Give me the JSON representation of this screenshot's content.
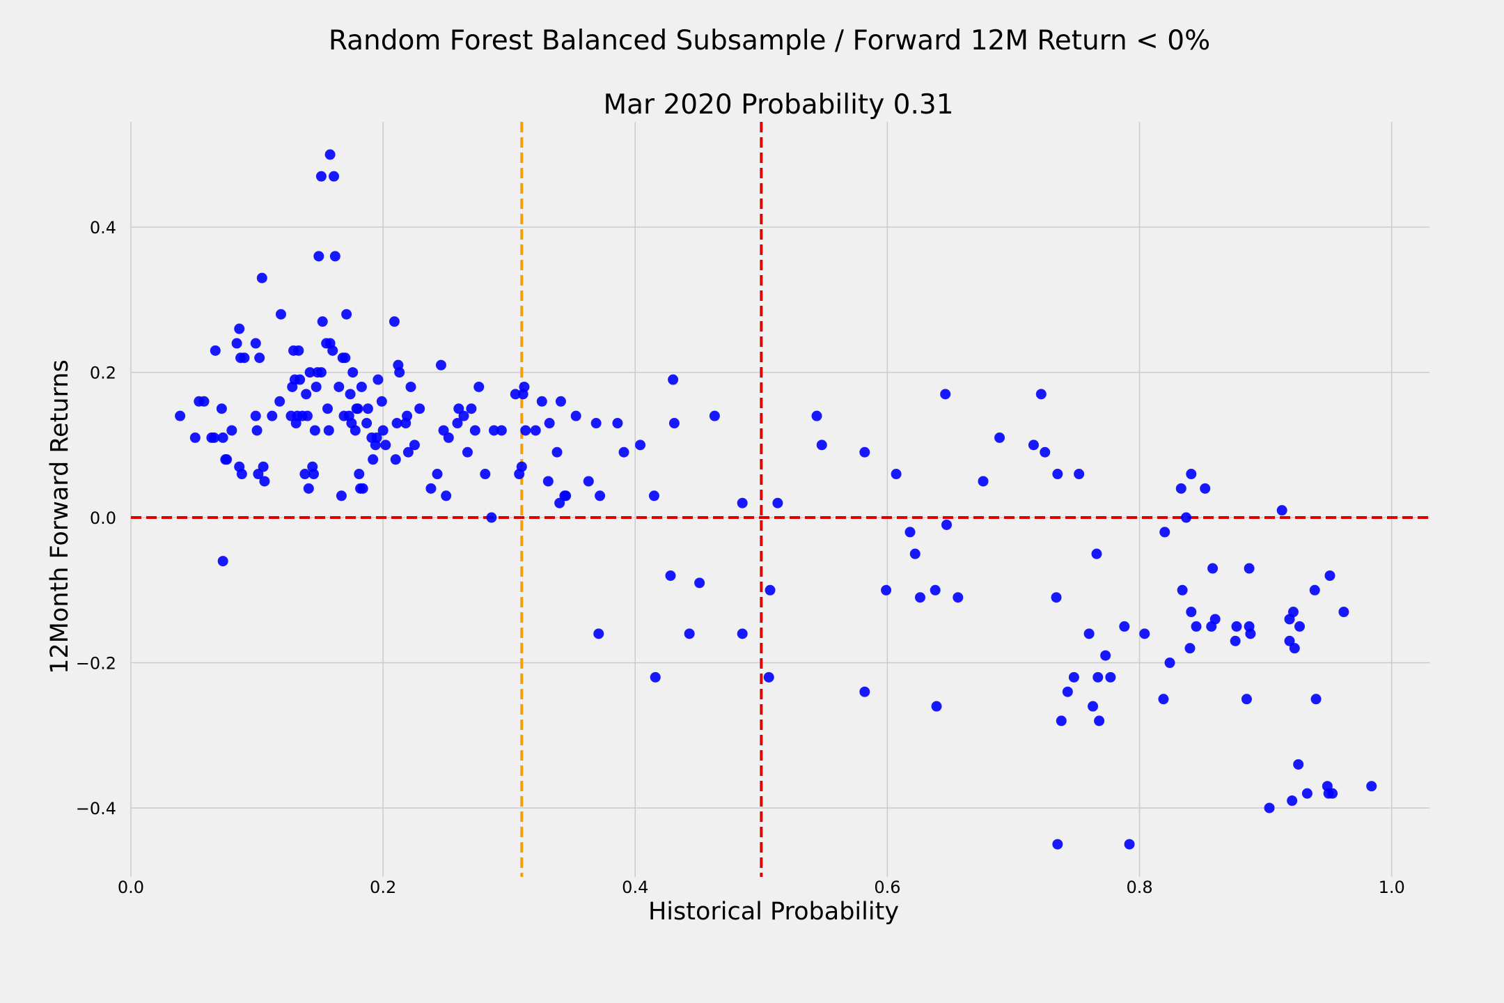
{
  "chart_data": {
    "type": "scatter",
    "title": "Random Forest Balanced Subsample / Forward 12M Return < 0%",
    "subtitle": "Mar 2020 Probability 0.31",
    "xlabel": "Historical Probability",
    "ylabel": "12Month Forward Returns",
    "xlim": [
      0.0,
      1.03
    ],
    "ylim": [
      -0.495,
      0.545
    ],
    "xticks": [
      0.0,
      0.2,
      0.4,
      0.6,
      0.8,
      1.0
    ],
    "xtick_labels": [
      "0.0",
      "0.2",
      "0.4",
      "0.6",
      "0.8",
      "1.0"
    ],
    "yticks": [
      -0.4,
      -0.2,
      0.0,
      0.2,
      0.4
    ],
    "ytick_labels": [
      "−0.4",
      "−0.2",
      "0.0",
      "0.2",
      "0.4"
    ],
    "grid": true,
    "colors": {
      "points": "#0000ff",
      "current_probability_line": "#f5a000",
      "threshold_lines": "#e00000",
      "background": "#f0f0f0",
      "grid": "#cbcbcb"
    },
    "reference_lines": [
      {
        "orientation": "vertical",
        "value": 0.31,
        "style": "dashed",
        "color": "#f5a000"
      },
      {
        "orientation": "vertical",
        "value": 0.5,
        "style": "dashed",
        "color": "#e00000"
      },
      {
        "orientation": "horizontal",
        "value": 0.0,
        "style": "dashed",
        "color": "#e00000"
      }
    ],
    "points": [
      [
        0.039,
        0.14
      ],
      [
        0.051,
        0.11
      ],
      [
        0.054,
        0.16
      ],
      [
        0.058,
        0.16
      ],
      [
        0.064,
        0.11
      ],
      [
        0.066,
        0.11
      ],
      [
        0.067,
        0.23
      ],
      [
        0.072,
        0.15
      ],
      [
        0.073,
        0.11
      ],
      [
        0.073,
        -0.06
      ],
      [
        0.075,
        0.08
      ],
      [
        0.076,
        0.08
      ],
      [
        0.08,
        0.12
      ],
      [
        0.084,
        0.24
      ],
      [
        0.086,
        0.26
      ],
      [
        0.086,
        0.07
      ],
      [
        0.087,
        0.22
      ],
      [
        0.088,
        0.06
      ],
      [
        0.09,
        0.22
      ],
      [
        0.099,
        0.14
      ],
      [
        0.099,
        0.24
      ],
      [
        0.1,
        0.12
      ],
      [
        0.101,
        0.06
      ],
      [
        0.102,
        0.22
      ],
      [
        0.104,
        0.33
      ],
      [
        0.105,
        0.07
      ],
      [
        0.106,
        0.05
      ],
      [
        0.112,
        0.14
      ],
      [
        0.118,
        0.16
      ],
      [
        0.119,
        0.28
      ],
      [
        0.127,
        0.14
      ],
      [
        0.128,
        0.18
      ],
      [
        0.129,
        0.23
      ],
      [
        0.13,
        0.19
      ],
      [
        0.131,
        0.13
      ],
      [
        0.132,
        0.14
      ],
      [
        0.133,
        0.23
      ],
      [
        0.134,
        0.19
      ],
      [
        0.136,
        0.14
      ],
      [
        0.138,
        0.06
      ],
      [
        0.139,
        0.17
      ],
      [
        0.14,
        0.14
      ],
      [
        0.141,
        0.04
      ],
      [
        0.142,
        0.2
      ],
      [
        0.144,
        0.07
      ],
      [
        0.145,
        0.06
      ],
      [
        0.146,
        0.12
      ],
      [
        0.147,
        0.18
      ],
      [
        0.148,
        0.2
      ],
      [
        0.149,
        0.36
      ],
      [
        0.151,
        0.47
      ],
      [
        0.151,
        0.2
      ],
      [
        0.152,
        0.27
      ],
      [
        0.155,
        0.24
      ],
      [
        0.156,
        0.15
      ],
      [
        0.157,
        0.12
      ],
      [
        0.158,
        0.24
      ],
      [
        0.158,
        0.5
      ],
      [
        0.16,
        0.23
      ],
      [
        0.161,
        0.47
      ],
      [
        0.162,
        0.36
      ],
      [
        0.165,
        0.18
      ],
      [
        0.167,
        0.03
      ],
      [
        0.168,
        0.22
      ],
      [
        0.169,
        0.14
      ],
      [
        0.17,
        0.22
      ],
      [
        0.171,
        0.28
      ],
      [
        0.173,
        0.14
      ],
      [
        0.174,
        0.17
      ],
      [
        0.175,
        0.13
      ],
      [
        0.176,
        0.2
      ],
      [
        0.178,
        0.12
      ],
      [
        0.179,
        0.15
      ],
      [
        0.18,
        0.15
      ],
      [
        0.181,
        0.06
      ],
      [
        0.182,
        0.04
      ],
      [
        0.183,
        0.18
      ],
      [
        0.184,
        0.04
      ],
      [
        0.187,
        0.13
      ],
      [
        0.188,
        0.15
      ],
      [
        0.191,
        0.11
      ],
      [
        0.192,
        0.08
      ],
      [
        0.194,
        0.1
      ],
      [
        0.195,
        0.11
      ],
      [
        0.196,
        0.19
      ],
      [
        0.199,
        0.16
      ],
      [
        0.2,
        0.12
      ],
      [
        0.202,
        0.1
      ],
      [
        0.209,
        0.27
      ],
      [
        0.21,
        0.08
      ],
      [
        0.211,
        0.13
      ],
      [
        0.212,
        0.21
      ],
      [
        0.213,
        0.2
      ],
      [
        0.218,
        0.13
      ],
      [
        0.219,
        0.14
      ],
      [
        0.22,
        0.09
      ],
      [
        0.222,
        0.18
      ],
      [
        0.225,
        0.1
      ],
      [
        0.229,
        0.15
      ],
      [
        0.238,
        0.04
      ],
      [
        0.243,
        0.06
      ],
      [
        0.246,
        0.21
      ],
      [
        0.248,
        0.12
      ],
      [
        0.25,
        0.03
      ],
      [
        0.252,
        0.11
      ],
      [
        0.259,
        0.13
      ],
      [
        0.26,
        0.15
      ],
      [
        0.264,
        0.14
      ],
      [
        0.267,
        0.09
      ],
      [
        0.27,
        0.15
      ],
      [
        0.273,
        0.12
      ],
      [
        0.276,
        0.18
      ],
      [
        0.281,
        0.06
      ],
      [
        0.286,
        0.0
      ],
      [
        0.288,
        0.12
      ],
      [
        0.294,
        0.12
      ],
      [
        0.305,
        0.17
      ],
      [
        0.308,
        0.06
      ],
      [
        0.31,
        0.07
      ],
      [
        0.311,
        0.17
      ],
      [
        0.312,
        0.18
      ],
      [
        0.313,
        0.12
      ],
      [
        0.321,
        0.12
      ],
      [
        0.326,
        0.16
      ],
      [
        0.331,
        0.05
      ],
      [
        0.332,
        0.13
      ],
      [
        0.338,
        0.09
      ],
      [
        0.34,
        0.02
      ],
      [
        0.341,
        0.16
      ],
      [
        0.344,
        0.03
      ],
      [
        0.345,
        0.03
      ],
      [
        0.353,
        0.14
      ],
      [
        0.363,
        0.05
      ],
      [
        0.369,
        0.13
      ],
      [
        0.372,
        0.03
      ],
      [
        0.371,
        -0.16
      ],
      [
        0.386,
        0.13
      ],
      [
        0.391,
        0.09
      ],
      [
        0.404,
        0.1
      ],
      [
        0.415,
        0.03
      ],
      [
        0.416,
        -0.22
      ],
      [
        0.428,
        -0.08
      ],
      [
        0.43,
        0.19
      ],
      [
        0.431,
        0.13
      ],
      [
        0.443,
        -0.16
      ],
      [
        0.451,
        -0.09
      ],
      [
        0.463,
        0.14
      ],
      [
        0.485,
        0.02
      ],
      [
        0.485,
        -0.16
      ],
      [
        0.506,
        -0.22
      ],
      [
        0.507,
        -0.1
      ],
      [
        0.513,
        0.02
      ],
      [
        0.544,
        0.14
      ],
      [
        0.548,
        0.1
      ],
      [
        0.582,
        0.09
      ],
      [
        0.582,
        -0.24
      ],
      [
        0.599,
        -0.1
      ],
      [
        0.607,
        0.06
      ],
      [
        0.618,
        -0.02
      ],
      [
        0.622,
        -0.05
      ],
      [
        0.626,
        -0.11
      ],
      [
        0.638,
        -0.1
      ],
      [
        0.639,
        -0.26
      ],
      [
        0.646,
        0.17
      ],
      [
        0.647,
        -0.01
      ],
      [
        0.656,
        -0.11
      ],
      [
        0.676,
        0.05
      ],
      [
        0.689,
        0.11
      ],
      [
        0.716,
        0.1
      ],
      [
        0.722,
        0.17
      ],
      [
        0.725,
        0.09
      ],
      [
        0.734,
        -0.11
      ],
      [
        0.735,
        0.06
      ],
      [
        0.735,
        -0.45
      ],
      [
        0.738,
        -0.28
      ],
      [
        0.743,
        -0.24
      ],
      [
        0.748,
        -0.22
      ],
      [
        0.752,
        0.06
      ],
      [
        0.76,
        -0.16
      ],
      [
        0.763,
        -0.26
      ],
      [
        0.766,
        -0.05
      ],
      [
        0.767,
        -0.22
      ],
      [
        0.768,
        -0.28
      ],
      [
        0.773,
        -0.19
      ],
      [
        0.777,
        -0.22
      ],
      [
        0.788,
        -0.15
      ],
      [
        0.792,
        -0.45
      ],
      [
        0.804,
        -0.16
      ],
      [
        0.819,
        -0.25
      ],
      [
        0.82,
        -0.02
      ],
      [
        0.824,
        -0.2
      ],
      [
        0.833,
        0.04
      ],
      [
        0.834,
        -0.1
      ],
      [
        0.837,
        0.0
      ],
      [
        0.84,
        -0.18
      ],
      [
        0.841,
        -0.13
      ],
      [
        0.841,
        0.06
      ],
      [
        0.845,
        -0.15
      ],
      [
        0.852,
        0.04
      ],
      [
        0.857,
        -0.15
      ],
      [
        0.858,
        -0.07
      ],
      [
        0.86,
        -0.14
      ],
      [
        0.876,
        -0.17
      ],
      [
        0.877,
        -0.15
      ],
      [
        0.885,
        -0.25
      ],
      [
        0.887,
        -0.07
      ],
      [
        0.887,
        -0.15
      ],
      [
        0.888,
        -0.16
      ],
      [
        0.903,
        -0.4
      ],
      [
        0.913,
        0.01
      ],
      [
        0.919,
        -0.14
      ],
      [
        0.919,
        -0.17
      ],
      [
        0.921,
        -0.39
      ],
      [
        0.922,
        -0.13
      ],
      [
        0.923,
        -0.18
      ],
      [
        0.926,
        -0.34
      ],
      [
        0.927,
        -0.15
      ],
      [
        0.933,
        -0.38
      ],
      [
        0.939,
        -0.1
      ],
      [
        0.94,
        -0.25
      ],
      [
        0.949,
        -0.37
      ],
      [
        0.95,
        -0.38
      ],
      [
        0.951,
        -0.08
      ],
      [
        0.953,
        -0.38
      ],
      [
        0.962,
        -0.13
      ],
      [
        0.984,
        -0.37
      ]
    ]
  }
}
